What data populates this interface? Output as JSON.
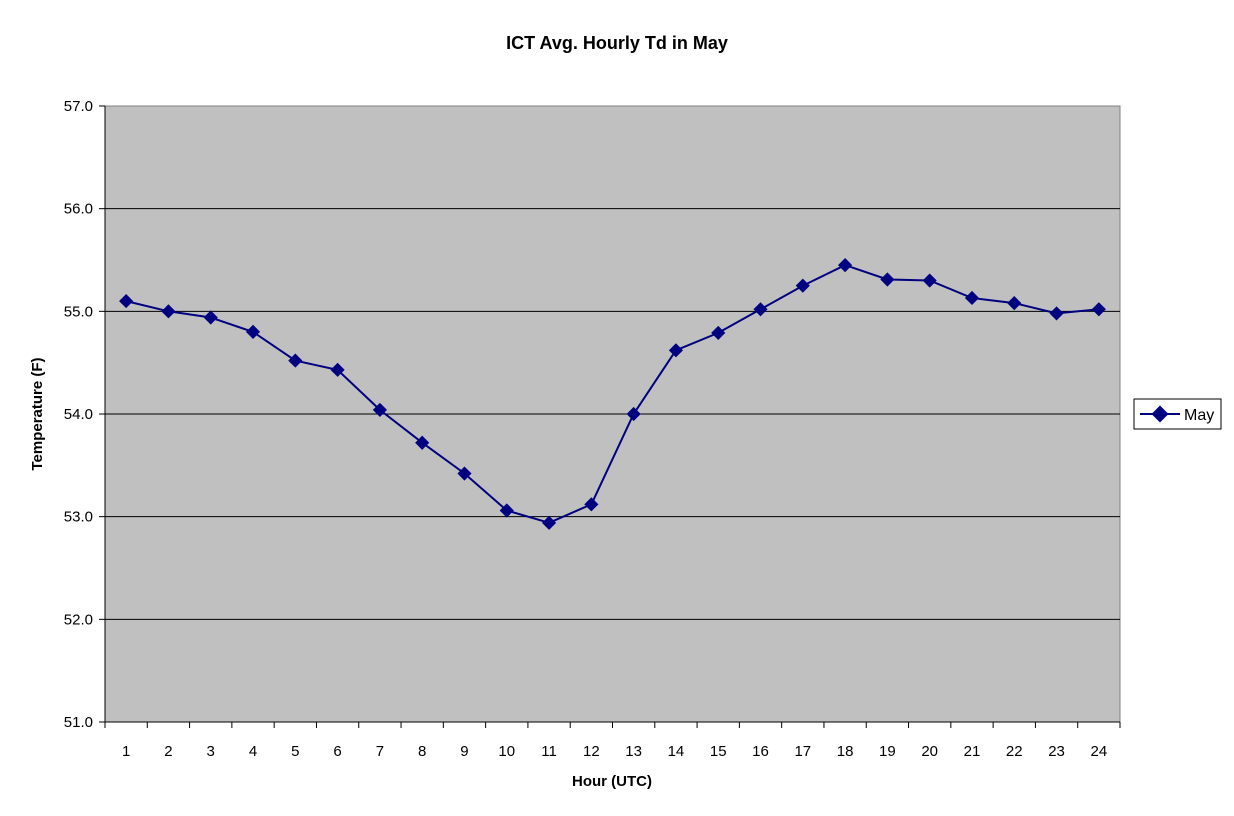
{
  "chart_data": {
    "type": "line",
    "title": "ICT Avg. Hourly Td in May",
    "xlabel": "Hour (UTC)",
    "ylabel": "Temperature (F)",
    "ylim": [
      51.0,
      57.0
    ],
    "y_ticks": [
      "51.0",
      "52.0",
      "53.0",
      "54.0",
      "55.0",
      "56.0",
      "57.0"
    ],
    "x": [
      1,
      2,
      3,
      4,
      5,
      6,
      7,
      8,
      9,
      10,
      11,
      12,
      13,
      14,
      15,
      16,
      17,
      18,
      19,
      20,
      21,
      22,
      23,
      24
    ],
    "x_ticks": [
      "1",
      "2",
      "3",
      "4",
      "5",
      "6",
      "7",
      "8",
      "9",
      "10",
      "11",
      "12",
      "13",
      "14",
      "15",
      "16",
      "17",
      "18",
      "19",
      "20",
      "21",
      "22",
      "23",
      "24"
    ],
    "series": [
      {
        "name": "May",
        "values": [
          55.1,
          55.0,
          54.94,
          54.8,
          54.52,
          54.43,
          54.04,
          53.72,
          53.42,
          53.06,
          52.94,
          53.12,
          54.0,
          54.62,
          54.79,
          55.02,
          55.25,
          55.45,
          55.31,
          55.3,
          55.13,
          55.08,
          54.98,
          55.02
        ]
      }
    ],
    "grid": true,
    "plot_background": "#c0c0c0",
    "series_color": "#000080",
    "legend_position": "right"
  }
}
